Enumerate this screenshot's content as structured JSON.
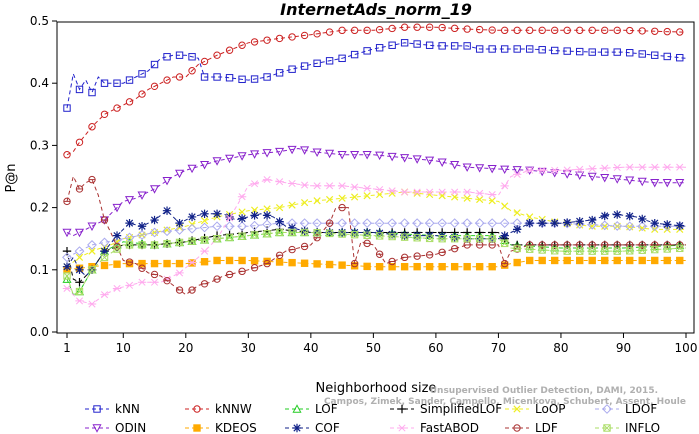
{
  "chart_data": {
    "type": "line",
    "title": "InternetAds_norm_19",
    "xlabel": "Neighborhood size",
    "ylabel": "P@n",
    "xlim": [
      1,
      100
    ],
    "ylim": [
      0,
      0.5
    ],
    "xticks": [
      1,
      10,
      20,
      30,
      40,
      50,
      60,
      70,
      80,
      90,
      100
    ],
    "yticks": [
      0.0,
      0.1,
      0.2,
      0.3,
      0.4,
      0.5
    ],
    "credit_lines": [
      "Unsupervised Outlier Detection, DAMI, 2015.",
      "Campos, Zimek, Sander, Campello, Micenkova, Schubert, Assent, Houle"
    ],
    "legend_position": "bottom",
    "series": [
      {
        "name": "kNN",
        "color": "#2222cc",
        "marker": "square",
        "points": [
          [
            1,
            0.36
          ],
          [
            2,
            0.415
          ],
          [
            3,
            0.39
          ],
          [
            4,
            0.405
          ],
          [
            5,
            0.385
          ],
          [
            6,
            0.41
          ],
          [
            7,
            0.4
          ],
          [
            10,
            0.4
          ],
          [
            12,
            0.41
          ],
          [
            14,
            0.42
          ],
          [
            16,
            0.44
          ],
          [
            18,
            0.445
          ],
          [
            20,
            0.445
          ],
          [
            22,
            0.44
          ],
          [
            23,
            0.41
          ],
          [
            26,
            0.41
          ],
          [
            30,
            0.405
          ],
          [
            33,
            0.41
          ],
          [
            36,
            0.42
          ],
          [
            40,
            0.43
          ],
          [
            45,
            0.44
          ],
          [
            50,
            0.455
          ],
          [
            55,
            0.465
          ],
          [
            60,
            0.46
          ],
          [
            65,
            0.46
          ],
          [
            67,
            0.455
          ],
          [
            70,
            0.455
          ],
          [
            75,
            0.455
          ],
          [
            80,
            0.452
          ],
          [
            85,
            0.45
          ],
          [
            90,
            0.45
          ],
          [
            95,
            0.445
          ],
          [
            100,
            0.44
          ]
        ]
      },
      {
        "name": "kNNW",
        "color": "#cc2222",
        "marker": "circle",
        "points": [
          [
            1,
            0.285
          ],
          [
            2,
            0.29
          ],
          [
            3,
            0.305
          ],
          [
            5,
            0.33
          ],
          [
            7,
            0.35
          ],
          [
            10,
            0.365
          ],
          [
            12,
            0.375
          ],
          [
            14,
            0.39
          ],
          [
            16,
            0.4
          ],
          [
            18,
            0.41
          ],
          [
            20,
            0.41
          ],
          [
            22,
            0.43
          ],
          [
            25,
            0.445
          ],
          [
            30,
            0.465
          ],
          [
            35,
            0.472
          ],
          [
            40,
            0.478
          ],
          [
            45,
            0.485
          ],
          [
            50,
            0.485
          ],
          [
            55,
            0.49
          ],
          [
            60,
            0.49
          ],
          [
            65,
            0.487
          ],
          [
            70,
            0.485
          ],
          [
            80,
            0.485
          ],
          [
            90,
            0.485
          ],
          [
            100,
            0.482
          ]
        ]
      },
      {
        "name": "LOF",
        "color": "#22cc22",
        "marker": "triangle-up",
        "points": [
          [
            1,
            0.085
          ],
          [
            2,
            0.06
          ],
          [
            3,
            0.065
          ],
          [
            5,
            0.1
          ],
          [
            7,
            0.13
          ],
          [
            10,
            0.145
          ],
          [
            15,
            0.14
          ],
          [
            20,
            0.145
          ],
          [
            25,
            0.15
          ],
          [
            30,
            0.155
          ],
          [
            35,
            0.16
          ],
          [
            40,
            0.16
          ],
          [
            50,
            0.16
          ],
          [
            60,
            0.155
          ],
          [
            70,
            0.155
          ],
          [
            72,
            0.14
          ],
          [
            80,
            0.135
          ],
          [
            90,
            0.135
          ],
          [
            100,
            0.14
          ]
        ]
      },
      {
        "name": "SimplifiedLOF",
        "color": "#000000",
        "marker": "plus",
        "points": [
          [
            1,
            0.13
          ],
          [
            2,
            0.085
          ],
          [
            3,
            0.08
          ],
          [
            5,
            0.1
          ],
          [
            7,
            0.13
          ],
          [
            10,
            0.14
          ],
          [
            15,
            0.14
          ],
          [
            20,
            0.145
          ],
          [
            25,
            0.155
          ],
          [
            30,
            0.16
          ],
          [
            35,
            0.165
          ],
          [
            40,
            0.16
          ],
          [
            50,
            0.16
          ],
          [
            60,
            0.16
          ],
          [
            70,
            0.16
          ],
          [
            72,
            0.14
          ],
          [
            80,
            0.14
          ],
          [
            90,
            0.14
          ],
          [
            100,
            0.14
          ]
        ]
      },
      {
        "name": "LoOP",
        "color": "#eeee22",
        "marker": "cross",
        "points": [
          [
            1,
            0.105
          ],
          [
            3,
            0.12
          ],
          [
            5,
            0.13
          ],
          [
            8,
            0.14
          ],
          [
            10,
            0.15
          ],
          [
            15,
            0.16
          ],
          [
            20,
            0.17
          ],
          [
            25,
            0.185
          ],
          [
            30,
            0.195
          ],
          [
            35,
            0.2
          ],
          [
            40,
            0.21
          ],
          [
            45,
            0.215
          ],
          [
            50,
            0.22
          ],
          [
            55,
            0.225
          ],
          [
            60,
            0.22
          ],
          [
            65,
            0.215
          ],
          [
            70,
            0.21
          ],
          [
            72,
            0.195
          ],
          [
            75,
            0.185
          ],
          [
            80,
            0.175
          ],
          [
            85,
            0.17
          ],
          [
            90,
            0.17
          ],
          [
            95,
            0.165
          ],
          [
            100,
            0.165
          ]
        ]
      },
      {
        "name": "LDOF",
        "color": "#aaaaee",
        "marker": "diamond",
        "points": [
          [
            1,
            0.12
          ],
          [
            3,
            0.13
          ],
          [
            5,
            0.14
          ],
          [
            10,
            0.15
          ],
          [
            15,
            0.16
          ],
          [
            20,
            0.165
          ],
          [
            25,
            0.17
          ],
          [
            30,
            0.17
          ],
          [
            35,
            0.175
          ],
          [
            40,
            0.175
          ],
          [
            50,
            0.175
          ],
          [
            60,
            0.175
          ],
          [
            70,
            0.175
          ],
          [
            75,
            0.175
          ],
          [
            80,
            0.175
          ],
          [
            90,
            0.17
          ],
          [
            100,
            0.17
          ]
        ]
      },
      {
        "name": "ODIN",
        "color": "#8822cc",
        "marker": "triangle-down",
        "points": [
          [
            1,
            0.16
          ],
          [
            2,
            0.155
          ],
          [
            3,
            0.16
          ],
          [
            5,
            0.17
          ],
          [
            7,
            0.18
          ],
          [
            10,
            0.21
          ],
          [
            12,
            0.215
          ],
          [
            15,
            0.23
          ],
          [
            18,
            0.25
          ],
          [
            20,
            0.26
          ],
          [
            25,
            0.275
          ],
          [
            30,
            0.285
          ],
          [
            35,
            0.29
          ],
          [
            38,
            0.295
          ],
          [
            40,
            0.29
          ],
          [
            45,
            0.285
          ],
          [
            50,
            0.285
          ],
          [
            55,
            0.28
          ],
          [
            60,
            0.275
          ],
          [
            65,
            0.265
          ],
          [
            70,
            0.262
          ],
          [
            75,
            0.26
          ],
          [
            80,
            0.255
          ],
          [
            85,
            0.25
          ],
          [
            90,
            0.245
          ],
          [
            95,
            0.24
          ],
          [
            100,
            0.24
          ]
        ]
      },
      {
        "name": "KDEOS",
        "color": "#ffaa00",
        "marker": "square-filled",
        "points": [
          [
            1,
            0.1
          ],
          [
            5,
            0.105
          ],
          [
            10,
            0.11
          ],
          [
            15,
            0.11
          ],
          [
            20,
            0.11
          ],
          [
            25,
            0.115
          ],
          [
            30,
            0.115
          ],
          [
            40,
            0.11
          ],
          [
            50,
            0.105
          ],
          [
            60,
            0.105
          ],
          [
            70,
            0.105
          ],
          [
            72,
            0.11
          ],
          [
            75,
            0.115
          ],
          [
            80,
            0.115
          ],
          [
            90,
            0.115
          ],
          [
            100,
            0.115
          ]
        ]
      },
      {
        "name": "COF",
        "color": "#112288",
        "marker": "asterisk",
        "points": [
          [
            1,
            0.105
          ],
          [
            2,
            0.12
          ],
          [
            3,
            0.1
          ],
          [
            4,
            0.09
          ],
          [
            5,
            0.1
          ],
          [
            7,
            0.13
          ],
          [
            9,
            0.155
          ],
          [
            11,
            0.175
          ],
          [
            13,
            0.17
          ],
          [
            15,
            0.18
          ],
          [
            17,
            0.195
          ],
          [
            19,
            0.175
          ],
          [
            21,
            0.185
          ],
          [
            23,
            0.19
          ],
          [
            26,
            0.19
          ],
          [
            28,
            0.18
          ],
          [
            30,
            0.185
          ],
          [
            32,
            0.19
          ],
          [
            34,
            0.185
          ],
          [
            36,
            0.17
          ],
          [
            40,
            0.16
          ],
          [
            45,
            0.16
          ],
          [
            50,
            0.16
          ],
          [
            55,
            0.155
          ],
          [
            60,
            0.155
          ],
          [
            65,
            0.15
          ],
          [
            70,
            0.15
          ],
          [
            72,
            0.16
          ],
          [
            75,
            0.175
          ],
          [
            80,
            0.175
          ],
          [
            85,
            0.18
          ],
          [
            88,
            0.19
          ],
          [
            92,
            0.185
          ],
          [
            95,
            0.175
          ],
          [
            100,
            0.17
          ]
        ]
      },
      {
        "name": "FastABOD",
        "color": "#ffaaee",
        "marker": "star",
        "points": [
          [
            1,
            0.07
          ],
          [
            3,
            0.05
          ],
          [
            5,
            0.045
          ],
          [
            7,
            0.06
          ],
          [
            9,
            0.07
          ],
          [
            11,
            0.075
          ],
          [
            13,
            0.08
          ],
          [
            16,
            0.08
          ],
          [
            19,
            0.095
          ],
          [
            22,
            0.12
          ],
          [
            25,
            0.15
          ],
          [
            28,
            0.2
          ],
          [
            30,
            0.235
          ],
          [
            33,
            0.245
          ],
          [
            36,
            0.24
          ],
          [
            40,
            0.235
          ],
          [
            45,
            0.235
          ],
          [
            50,
            0.23
          ],
          [
            55,
            0.225
          ],
          [
            60,
            0.225
          ],
          [
            65,
            0.225
          ],
          [
            70,
            0.22
          ],
          [
            72,
            0.25
          ],
          [
            75,
            0.26
          ],
          [
            80,
            0.26
          ],
          [
            90,
            0.265
          ],
          [
            100,
            0.265
          ]
        ]
      },
      {
        "name": "LDF",
        "color": "#aa3333",
        "marker": "circle-line",
        "points": [
          [
            1,
            0.21
          ],
          [
            2,
            0.25
          ],
          [
            3,
            0.23
          ],
          [
            4,
            0.24
          ],
          [
            5,
            0.245
          ],
          [
            6,
            0.22
          ],
          [
            7,
            0.18
          ],
          [
            8,
            0.16
          ],
          [
            10,
            0.115
          ],
          [
            12,
            0.11
          ],
          [
            14,
            0.095
          ],
          [
            16,
            0.09
          ],
          [
            18,
            0.075
          ],
          [
            20,
            0.06
          ],
          [
            22,
            0.075
          ],
          [
            24,
            0.08
          ],
          [
            26,
            0.09
          ],
          [
            30,
            0.1
          ],
          [
            33,
            0.11
          ],
          [
            36,
            0.13
          ],
          [
            40,
            0.14
          ],
          [
            43,
            0.175
          ],
          [
            44,
            0.2
          ],
          [
            46,
            0.2
          ],
          [
            47,
            0.11
          ],
          [
            48,
            0.145
          ],
          [
            50,
            0.14
          ],
          [
            52,
            0.11
          ],
          [
            55,
            0.12
          ],
          [
            60,
            0.125
          ],
          [
            65,
            0.14
          ],
          [
            70,
            0.14
          ],
          [
            71,
            0.11
          ],
          [
            72,
            0.13
          ],
          [
            75,
            0.14
          ],
          [
            80,
            0.14
          ],
          [
            90,
            0.14
          ],
          [
            100,
            0.14
          ]
        ]
      },
      {
        "name": "INFLO",
        "color": "#aadd66",
        "marker": "hourglass",
        "points": [
          [
            1,
            0.09
          ],
          [
            2,
            0.06
          ],
          [
            3,
            0.065
          ],
          [
            5,
            0.1
          ],
          [
            7,
            0.12
          ],
          [
            10,
            0.14
          ],
          [
            15,
            0.14
          ],
          [
            20,
            0.145
          ],
          [
            25,
            0.15
          ],
          [
            30,
            0.155
          ],
          [
            35,
            0.16
          ],
          [
            40,
            0.16
          ],
          [
            50,
            0.155
          ],
          [
            60,
            0.15
          ],
          [
            70,
            0.15
          ],
          [
            72,
            0.135
          ],
          [
            80,
            0.13
          ],
          [
            90,
            0.13
          ],
          [
            100,
            0.135
          ]
        ]
      }
    ]
  }
}
